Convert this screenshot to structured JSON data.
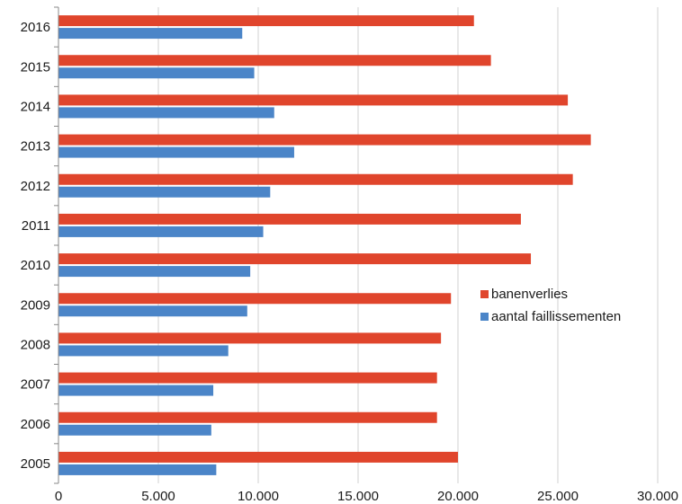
{
  "chart_data": {
    "type": "bar",
    "orientation": "horizontal",
    "categories": [
      "2005",
      "2006",
      "2007",
      "2008",
      "2009",
      "2010",
      "2011",
      "2012",
      "2013",
      "2014",
      "2015",
      "2016"
    ],
    "series": [
      {
        "name": "banenverlies",
        "color": "#e0452c",
        "values": [
          20000,
          18950,
          18950,
          19150,
          19650,
          23650,
          23150,
          25750,
          26650,
          25500,
          21650,
          20800
        ]
      },
      {
        "name": "aantal faillissementen",
        "color": "#4b85c8",
        "values": [
          7900,
          7650,
          7750,
          8500,
          9450,
          9600,
          10250,
          10600,
          11800,
          10800,
          9800,
          9200
        ]
      }
    ],
    "xlim": [
      0,
      30000
    ],
    "xticks": [
      0,
      5000,
      10000,
      15000,
      20000,
      25000,
      30000
    ],
    "xtick_labels": [
      "0",
      "5.000",
      "10.000",
      "15.000",
      "20.000",
      "25.000",
      "30.000"
    ],
    "grid": "vertical",
    "legend_position": "right",
    "title": "",
    "xlabel": "",
    "ylabel": ""
  },
  "legend": {
    "items": [
      {
        "label": "banenverlies",
        "color": "#e0452c"
      },
      {
        "label": "aantal faillissementen",
        "color": "#4b85c8"
      }
    ]
  }
}
